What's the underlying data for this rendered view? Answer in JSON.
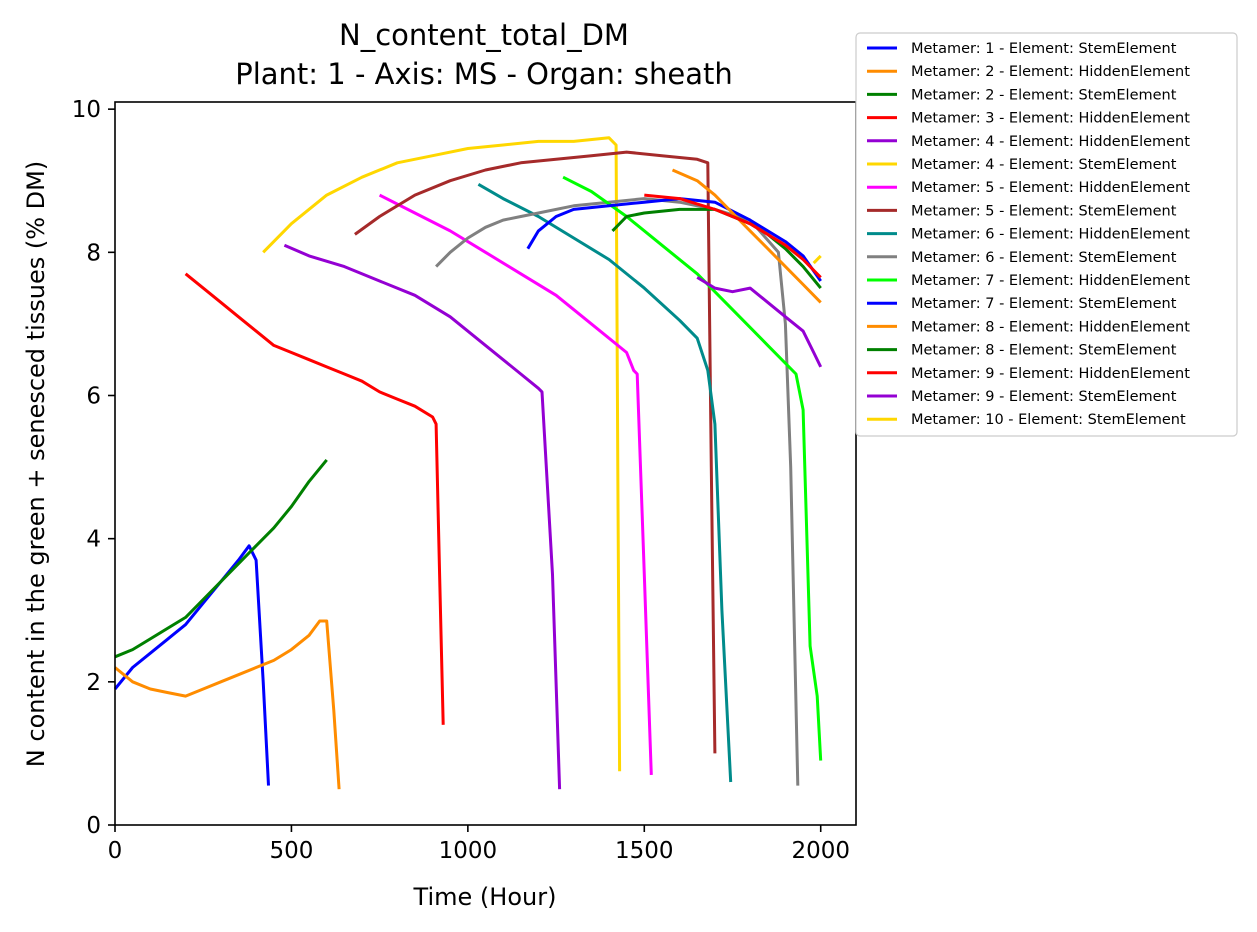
{
  "chart_data": {
    "type": "line",
    "title": "N_content_total_DM",
    "subtitle": "Plant: 1 - Axis: MS - Organ: sheath",
    "xlabel": "Time (Hour)",
    "ylabel": "N content in the green + senesced tissues (% DM)",
    "xlim": [
      0,
      2100
    ],
    "ylim": [
      0,
      10.1
    ],
    "xticks": [
      0,
      500,
      1000,
      1500,
      2000
    ],
    "yticks": [
      0,
      2,
      4,
      6,
      8,
      10
    ],
    "xtick_labels": [
      "0",
      "500",
      "1000",
      "1500",
      "2000"
    ],
    "ytick_labels": [
      "0",
      "2",
      "4",
      "6",
      "8",
      "10"
    ],
    "grid": false,
    "legend_position": "outside-top-right",
    "series": [
      {
        "name": "Metamer: 1 - Element: StemElement",
        "color": "#0000ff",
        "x": [
          0,
          50,
          100,
          150,
          200,
          250,
          300,
          350,
          380,
          400,
          420,
          435
        ],
        "y": [
          1.9,
          2.2,
          2.4,
          2.6,
          2.8,
          3.1,
          3.4,
          3.7,
          3.9,
          3.7,
          2.0,
          0.55
        ]
      },
      {
        "name": "Metamer: 2 - Element: HiddenElement",
        "color": "#ff8c00",
        "x": [
          0,
          50,
          100,
          150,
          200,
          250,
          300,
          350,
          400,
          450,
          500,
          550,
          580,
          600,
          620,
          635
        ],
        "y": [
          2.2,
          2.0,
          1.9,
          1.85,
          1.8,
          1.9,
          2.0,
          2.1,
          2.2,
          2.3,
          2.45,
          2.65,
          2.85,
          2.85,
          1.6,
          0.5
        ]
      },
      {
        "name": "Metamer: 2 - Element: StemElement",
        "color": "#008000",
        "x": [
          0,
          50,
          100,
          150,
          200,
          250,
          300,
          350,
          400,
          450,
          500,
          550,
          600
        ],
        "y": [
          2.35,
          2.45,
          2.6,
          2.75,
          2.9,
          3.15,
          3.4,
          3.65,
          3.9,
          4.15,
          4.45,
          4.8,
          5.1
        ]
      },
      {
        "name": "Metamer: 3 - Element: HiddenElement",
        "color": "#ff0000",
        "x": [
          200,
          250,
          300,
          350,
          400,
          450,
          500,
          550,
          600,
          650,
          700,
          750,
          800,
          850,
          900,
          910,
          920,
          930
        ],
        "y": [
          7.7,
          7.5,
          7.3,
          7.1,
          6.9,
          6.7,
          6.6,
          6.5,
          6.4,
          6.3,
          6.2,
          6.05,
          5.95,
          5.85,
          5.7,
          5.6,
          3.5,
          1.4
        ]
      },
      {
        "name": "Metamer: 4 - Element: HiddenElement",
        "color": "#9400d3",
        "x": [
          480,
          550,
          650,
          750,
          850,
          950,
          1050,
          1150,
          1200,
          1210,
          1220,
          1240,
          1260
        ],
        "y": [
          8.1,
          7.95,
          7.8,
          7.6,
          7.4,
          7.1,
          6.7,
          6.3,
          6.1,
          6.05,
          5.2,
          3.5,
          0.5
        ]
      },
      {
        "name": "Metamer: 4 - Element: StemElement",
        "color": "#ffd700",
        "x": [
          420,
          500,
          600,
          700,
          800,
          900,
          1000,
          1100,
          1200,
          1300,
          1400,
          1420,
          1425,
          1430
        ],
        "y": [
          8.0,
          8.4,
          8.8,
          9.05,
          9.25,
          9.35,
          9.45,
          9.5,
          9.55,
          9.55,
          9.6,
          9.5,
          5.0,
          0.75
        ]
      },
      {
        "name": "Metamer: 5 - Element: HiddenElement",
        "color": "#ff00ff",
        "x": [
          750,
          850,
          950,
          1050,
          1150,
          1250,
          1350,
          1450,
          1470,
          1480,
          1500,
          1520
        ],
        "y": [
          8.8,
          8.55,
          8.3,
          8.0,
          7.7,
          7.4,
          7.0,
          6.6,
          6.35,
          6.3,
          3.5,
          0.7
        ]
      },
      {
        "name": "Metamer: 5 - Element: StemElement",
        "color": "#a52a2a",
        "x": [
          680,
          750,
          850,
          950,
          1050,
          1150,
          1250,
          1350,
          1450,
          1550,
          1650,
          1680,
          1690,
          1700
        ],
        "y": [
          8.25,
          8.5,
          8.8,
          9.0,
          9.15,
          9.25,
          9.3,
          9.35,
          9.4,
          9.35,
          9.3,
          9.25,
          5.0,
          1.0
        ]
      },
      {
        "name": "Metamer: 6 - Element: HiddenElement",
        "color": "#008b8b",
        "x": [
          1030,
          1100,
          1200,
          1300,
          1400,
          1500,
          1600,
          1650,
          1680,
          1700,
          1720,
          1745
        ],
        "y": [
          8.95,
          8.75,
          8.5,
          8.2,
          7.9,
          7.5,
          7.05,
          6.8,
          6.35,
          5.6,
          3.0,
          0.6
        ]
      },
      {
        "name": "Metamer: 6 - Element: StemElement",
        "color": "#808080",
        "x": [
          910,
          950,
          1000,
          1050,
          1100,
          1150,
          1200,
          1300,
          1400,
          1500,
          1600,
          1700,
          1800,
          1880,
          1900,
          1915,
          1935
        ],
        "y": [
          7.8,
          8.0,
          8.2,
          8.35,
          8.45,
          8.5,
          8.55,
          8.65,
          8.7,
          8.75,
          8.7,
          8.6,
          8.45,
          8.0,
          7.0,
          5.0,
          0.55
        ]
      },
      {
        "name": "Metamer: 7 - Element: HiddenElement",
        "color": "#00ff00",
        "x": [
          1270,
          1350,
          1450,
          1550,
          1650,
          1750,
          1850,
          1930,
          1950,
          1970,
          1990,
          2000
        ],
        "y": [
          9.05,
          8.85,
          8.5,
          8.1,
          7.7,
          7.2,
          6.7,
          6.3,
          5.8,
          2.5,
          1.8,
          0.9
        ]
      },
      {
        "name": "Metamer: 7 - Element: StemElement",
        "color": "#0000ff",
        "x": [
          1170,
          1200,
          1250,
          1300,
          1400,
          1500,
          1600,
          1700,
          1800,
          1900,
          1950,
          2000
        ],
        "y": [
          8.05,
          8.3,
          8.5,
          8.6,
          8.65,
          8.7,
          8.75,
          8.7,
          8.45,
          8.15,
          7.95,
          7.6
        ]
      },
      {
        "name": "Metamer: 8 - Element: HiddenElement",
        "color": "#ff8c00",
        "x": [
          1580,
          1650,
          1700,
          1750,
          1800,
          1850,
          1900,
          1950,
          2000
        ],
        "y": [
          9.15,
          9.0,
          8.8,
          8.55,
          8.3,
          8.05,
          7.8,
          7.55,
          7.3
        ]
      },
      {
        "name": "Metamer: 8 - Element: StemElement",
        "color": "#008000",
        "x": [
          1410,
          1450,
          1500,
          1600,
          1700,
          1800,
          1850,
          1900,
          1950,
          2000
        ],
        "y": [
          8.3,
          8.5,
          8.55,
          8.6,
          8.6,
          8.4,
          8.25,
          8.05,
          7.8,
          7.5
        ]
      },
      {
        "name": "Metamer: 9 - Element: HiddenElement",
        "color": "#ff0000",
        "x": [
          1500,
          1600,
          1700,
          1800,
          1900,
          1950,
          2000
        ],
        "y": [
          8.8,
          8.75,
          8.6,
          8.4,
          8.1,
          7.9,
          7.65
        ]
      },
      {
        "name": "Metamer: 9 - Element: StemElement",
        "color": "#9400d3",
        "x": [
          1650,
          1700,
          1750,
          1800,
          1850,
          1900,
          1950,
          1980,
          2000
        ],
        "y": [
          7.65,
          7.5,
          7.45,
          7.5,
          7.3,
          7.1,
          6.9,
          6.6,
          6.4
        ]
      },
      {
        "name": "Metamer: 10 - Element: StemElement",
        "color": "#ffd700",
        "x": [
          1980,
          2000
        ],
        "y": [
          7.85,
          7.95
        ]
      }
    ]
  }
}
